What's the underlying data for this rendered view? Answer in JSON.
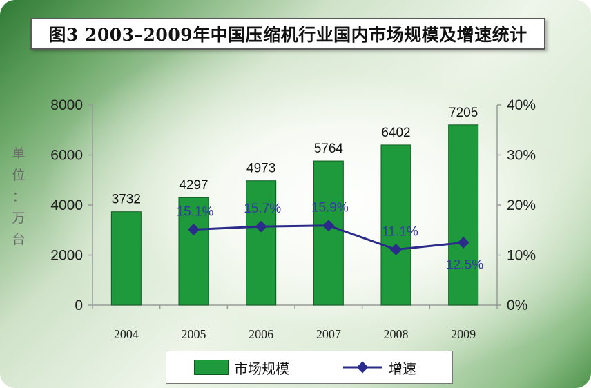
{
  "chart_data": {
    "type": "bar",
    "title": "图3  2003–2009年中国压缩机行业国内市场规模及增速统计",
    "ylabel": "单位：万台",
    "categories": [
      "2004",
      "2005",
      "2006",
      "2007",
      "2008",
      "2009"
    ],
    "ylim": [
      0,
      8000
    ],
    "y_ticks": [
      "0",
      "2000",
      "4000",
      "6000",
      "8000"
    ],
    "y2lim": [
      0,
      40
    ],
    "y2_ticks": [
      "0%",
      "10%",
      "20%",
      "30%",
      "40%"
    ],
    "grid": false,
    "legend_position": "bottom",
    "series": [
      {
        "name": "市场规模",
        "kind": "bar",
        "axis": "left",
        "color": "#1e9a3c",
        "values": [
          3732,
          4297,
          4973,
          5764,
          6402,
          7205
        ],
        "labels": [
          "3732",
          "4297",
          "4973",
          "5764",
          "6402",
          "7205"
        ]
      },
      {
        "name": "增速",
        "kind": "line",
        "axis": "right",
        "color": "#2b2b8a",
        "values": [
          null,
          15.1,
          15.7,
          15.9,
          11.1,
          12.5
        ],
        "labels": [
          "",
          "15.1%",
          "15.7%",
          "15.9%",
          "11.1%",
          "12.5%"
        ]
      }
    ]
  },
  "unit_chars": [
    "单",
    "位",
    "：",
    "万",
    "台"
  ]
}
